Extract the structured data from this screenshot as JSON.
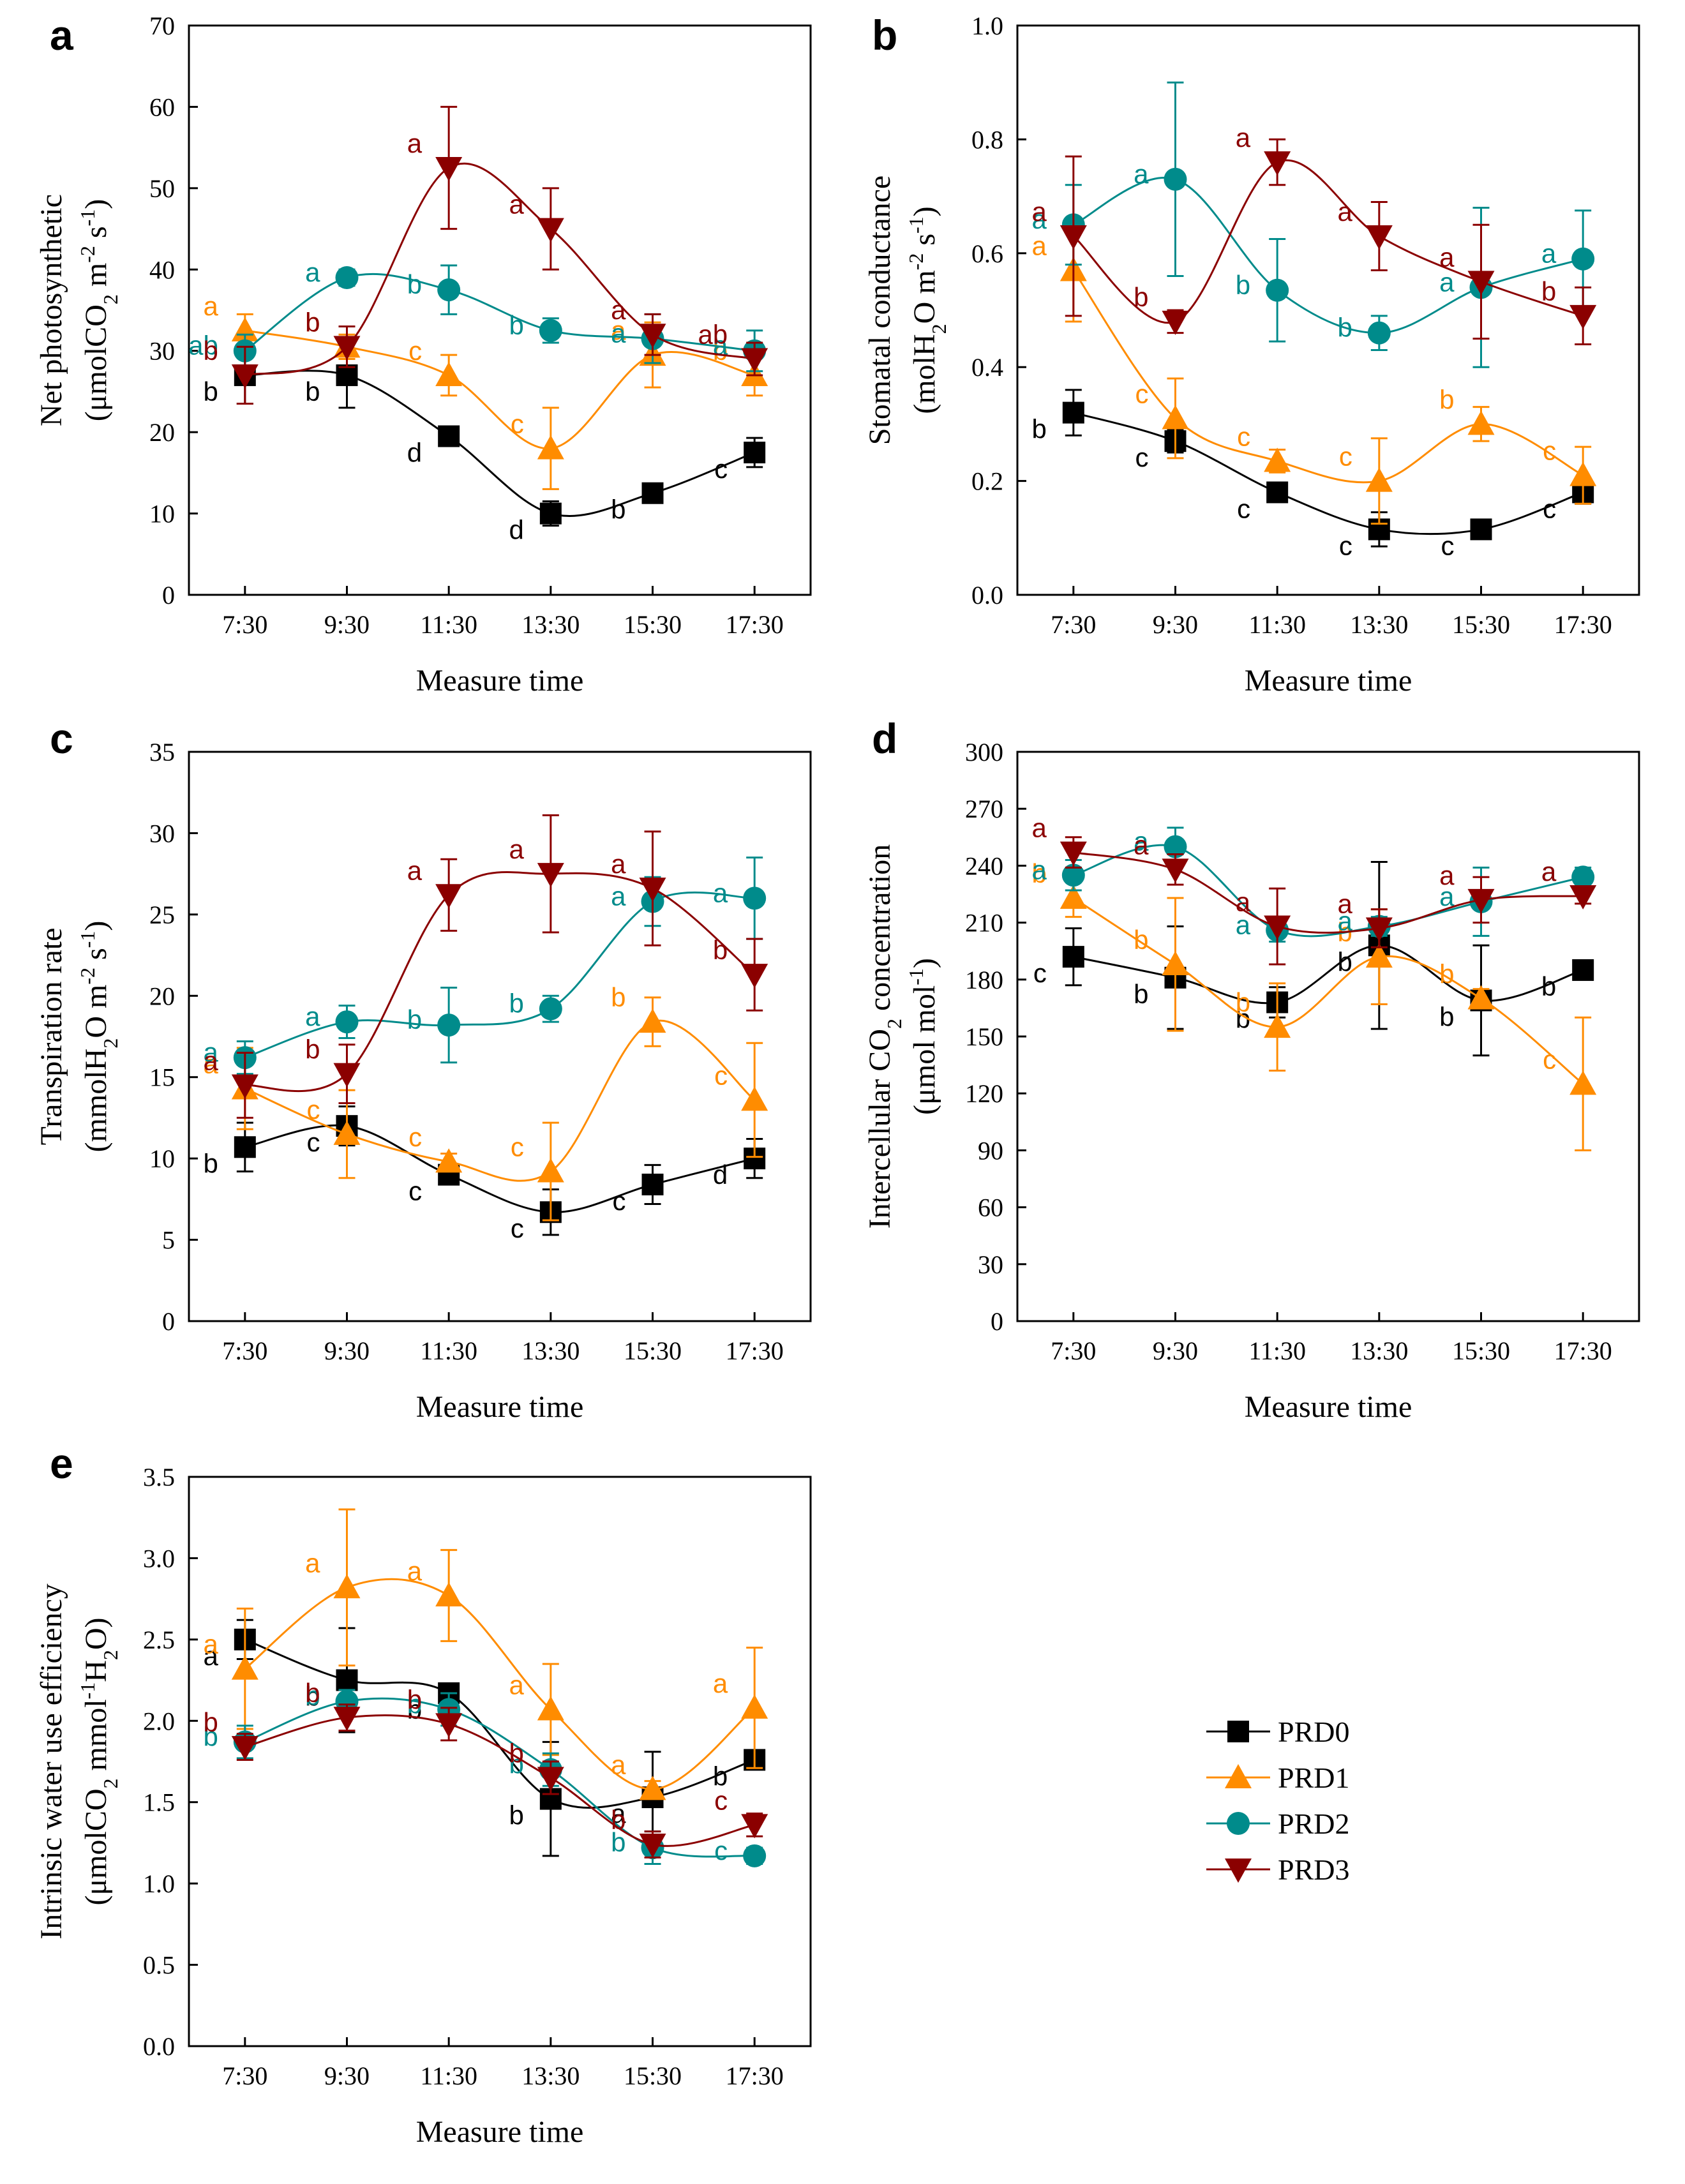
{
  "colors": {
    "PRD0": "#000000",
    "PRD1": "#ff8c00",
    "PRD2": "#008b8b",
    "PRD3": "#8b0000"
  },
  "legend": [
    {
      "name": "PRD0",
      "marker": "square-icon"
    },
    {
      "name": "PRD1",
      "marker": "triangle-up-icon"
    },
    {
      "name": "PRD2",
      "marker": "circle-icon"
    },
    {
      "name": "PRD3",
      "marker": "triangle-down-icon"
    }
  ],
  "chart_data": [
    {
      "id": "a",
      "type": "line",
      "categories": [
        "7:30",
        "9:30",
        "11:30",
        "13:30",
        "15:30",
        "17:30"
      ],
      "xlabel": "Measure time",
      "ylabel_line1": "Net photosynthetic",
      "ylabel_line2_parts": [
        "(μmolCO",
        "2",
        " m",
        "-2",
        " s",
        "-1",
        ")"
      ],
      "ylim": [
        0,
        70
      ],
      "ytick_step": 10,
      "ytick_decimals": 0,
      "series": [
        {
          "name": "PRD0",
          "values": [
            27,
            27,
            19.5,
            10,
            12.5,
            17.5
          ],
          "errors": [
            3.5,
            4,
            0,
            1.5,
            0,
            1.8
          ],
          "letters": [
            "b",
            "b",
            "d",
            "d",
            "b",
            "c"
          ]
        },
        {
          "name": "PRD1",
          "values": [
            32.5,
            30.5,
            27,
            18,
            29.5,
            27
          ],
          "errors": [
            2,
            1.5,
            2.5,
            5,
            4,
            2.5
          ],
          "letters": [
            "a",
            "b",
            "c",
            "c",
            "a",
            "b"
          ]
        },
        {
          "name": "PRD2",
          "values": [
            30,
            39,
            37.5,
            32.5,
            31.5,
            30
          ],
          "errors": [
            2,
            1,
            3,
            1.5,
            3,
            2.5
          ],
          "letters": [
            "ab",
            "a",
            "b",
            "b",
            "a",
            "a"
          ]
        },
        {
          "name": "PRD3",
          "values": [
            27,
            30.5,
            52.5,
            45,
            32,
            29
          ],
          "errors": [
            3.5,
            2.5,
            7.5,
            5,
            2.5,
            2
          ],
          "letters": [
            "b",
            "b",
            "a",
            "a",
            "a",
            "ab"
          ]
        }
      ]
    },
    {
      "id": "b",
      "type": "line",
      "categories": [
        "7:30",
        "9:30",
        "11:30",
        "13:30",
        "15:30",
        "17:30"
      ],
      "xlabel": "Measure time",
      "ylabel_line1": "Stomatal conductance",
      "ylabel_line2_parts": [
        "(molH",
        "2",
        "O m",
        "-2",
        " s",
        "-1",
        ")"
      ],
      "ylim": [
        0,
        1.0
      ],
      "ytick_step": 0.2,
      "ytick_decimals": 1,
      "series": [
        {
          "name": "PRD0",
          "values": [
            0.32,
            0.27,
            0.18,
            0.115,
            0.115,
            0.18
          ],
          "errors": [
            0.04,
            0.02,
            0.015,
            0.03,
            0.015,
            0.02
          ],
          "letters": [
            "b",
            "c",
            "c",
            "c",
            "c",
            "c"
          ]
        },
        {
          "name": "PRD1",
          "values": [
            0.57,
            0.31,
            0.235,
            0.2,
            0.3,
            0.21
          ],
          "errors": [
            0.09,
            0.07,
            0.02,
            0.075,
            0.03,
            0.05
          ],
          "letters": [
            "a",
            "c",
            "c",
            "c",
            "b",
            "c"
          ]
        },
        {
          "name": "PRD2",
          "values": [
            0.65,
            0.73,
            0.535,
            0.46,
            0.54,
            0.59
          ],
          "errors": [
            0.07,
            0.17,
            0.09,
            0.03,
            0.14,
            0.085
          ],
          "letters": [
            "a",
            "a",
            "b",
            "b",
            "a",
            "a"
          ]
        },
        {
          "name": "PRD3",
          "values": [
            0.63,
            0.48,
            0.76,
            0.63,
            0.55,
            0.49
          ],
          "errors": [
            0.14,
            0.02,
            0.04,
            0.06,
            0.1,
            0.05
          ],
          "letters": [
            "a",
            "b",
            "a",
            "a",
            "a",
            "b"
          ]
        }
      ]
    },
    {
      "id": "c",
      "type": "line",
      "categories": [
        "7:30",
        "9:30",
        "11:30",
        "13:30",
        "15:30",
        "17:30"
      ],
      "xlabel": "Measure time",
      "ylabel_line1": "Transpiration rate",
      "ylabel_line2_parts": [
        "(mmolH",
        "2",
        "O m",
        "-2",
        " s",
        "-1",
        ")"
      ],
      "ylim": [
        0,
        35
      ],
      "ytick_step": 5,
      "ytick_decimals": 0,
      "series": [
        {
          "name": "PRD0",
          "values": [
            10.7,
            12,
            9,
            6.7,
            8.4,
            10
          ],
          "errors": [
            1.5,
            1.2,
            0.5,
            1.4,
            1.2,
            1.2
          ],
          "letters": [
            "b",
            "c",
            "c",
            "c",
            "c",
            "d"
          ]
        },
        {
          "name": "PRD1",
          "values": [
            14.3,
            11.5,
            9.8,
            9.2,
            18.4,
            13.6
          ],
          "errors": [
            2.5,
            2.7,
            0.5,
            3,
            1.5,
            3.5
          ],
          "letters": [
            "a",
            "c",
            "c",
            "c",
            "b",
            "c"
          ]
        },
        {
          "name": "PRD2",
          "values": [
            16.2,
            18.4,
            18.2,
            19.2,
            25.8,
            26
          ],
          "errors": [
            1,
            1,
            2.3,
            0.8,
            1.5,
            2.5
          ],
          "letters": [
            "a",
            "a",
            "b",
            "b",
            "a",
            "a"
          ]
        },
        {
          "name": "PRD3",
          "values": [
            14.5,
            15.2,
            26.2,
            27.5,
            26.6,
            21.3
          ],
          "errors": [
            2,
            1.8,
            2.2,
            3.6,
            3.5,
            2.2
          ],
          "letters": [
            "a",
            "b",
            "a",
            "a",
            "a",
            "b"
          ]
        }
      ]
    },
    {
      "id": "d",
      "type": "line",
      "categories": [
        "7:30",
        "9:30",
        "11:30",
        "13:30",
        "15:30",
        "17:30"
      ],
      "xlabel": "Measure time",
      "ylabel_line1_parts": [
        "Intercellular CO",
        "2",
        " concentration"
      ],
      "ylabel_line2_parts": [
        "(μmol mol",
        "-1",
        ")"
      ],
      "ylim": [
        0,
        300
      ],
      "ytick_step": 30,
      "ytick_decimals": 0,
      "series": [
        {
          "name": "PRD0",
          "values": [
            192,
            181,
            168,
            198,
            169,
            185
          ],
          "errors": [
            15,
            27,
            8,
            44,
            29,
            0
          ],
          "letters": [
            "c",
            "b",
            "b",
            "b",
            "b",
            "b"
          ]
        },
        {
          "name": "PRD1",
          "values": [
            223,
            188,
            155,
            192,
            170,
            125
          ],
          "errors": [
            10,
            35,
            23,
            25,
            5,
            35
          ],
          "letters": [
            "b",
            "b",
            "b",
            "b",
            "b",
            "c"
          ]
        },
        {
          "name": "PRD2",
          "values": [
            235,
            250,
            206,
            208,
            221,
            234
          ],
          "errors": [
            8,
            10,
            6,
            5,
            18,
            5
          ],
          "letters": [
            "a",
            "a",
            "a",
            "a",
            "a",
            "a"
          ]
        },
        {
          "name": "PRD3",
          "values": [
            247,
            238,
            208,
            207,
            222,
            224
          ],
          "errors": [
            8,
            8,
            20,
            10,
            12,
            4
          ],
          "letters": [
            "a",
            "a",
            "a",
            "a",
            "a",
            "a"
          ]
        }
      ]
    },
    {
      "id": "e",
      "type": "line",
      "categories": [
        "7:30",
        "9:30",
        "11:30",
        "13:30",
        "15:30",
        "17:30"
      ],
      "xlabel": "Measure time",
      "ylabel_line1": "Intrinsic water use efficiency",
      "ylabel_line2_parts": [
        "(μmolCO",
        "2",
        " mmol",
        "-1",
        "H",
        "2",
        "O)"
      ],
      "ylim": [
        0,
        3.5
      ],
      "ytick_step": 0.5,
      "ytick_decimals": 1,
      "series": [
        {
          "name": "PRD0",
          "values": [
            2.5,
            2.25,
            2.17,
            1.52,
            1.53,
            1.76
          ],
          "errors": [
            0.12,
            0.32,
            0.05,
            0.35,
            0.28,
            0.05
          ],
          "letters": [
            "a",
            "b",
            "b",
            "b",
            "a",
            "b"
          ]
        },
        {
          "name": "PRD1",
          "values": [
            2.32,
            2.82,
            2.77,
            2.07,
            1.58,
            2.08
          ],
          "errors": [
            0.37,
            0.48,
            0.28,
            0.28,
            0.05,
            0.37
          ],
          "letters": [
            "a",
            "a",
            "a",
            "a",
            "a",
            "a"
          ]
        },
        {
          "name": "PRD2",
          "values": [
            1.87,
            2.12,
            2.07,
            1.7,
            1.22,
            1.17
          ],
          "errors": [
            0.1,
            0.07,
            0.1,
            0.1,
            0.1,
            0.05
          ],
          "letters": [
            "b",
            "b",
            "b",
            "b",
            "b",
            "c"
          ]
        },
        {
          "name": "PRD3",
          "values": [
            1.84,
            2.02,
            1.98,
            1.65,
            1.24,
            1.36
          ],
          "errors": [
            0.08,
            0.08,
            0.1,
            0.1,
            0.08,
            0.07
          ],
          "letters": [
            "b",
            "b",
            "b",
            "b",
            "b",
            "c"
          ]
        }
      ]
    }
  ]
}
